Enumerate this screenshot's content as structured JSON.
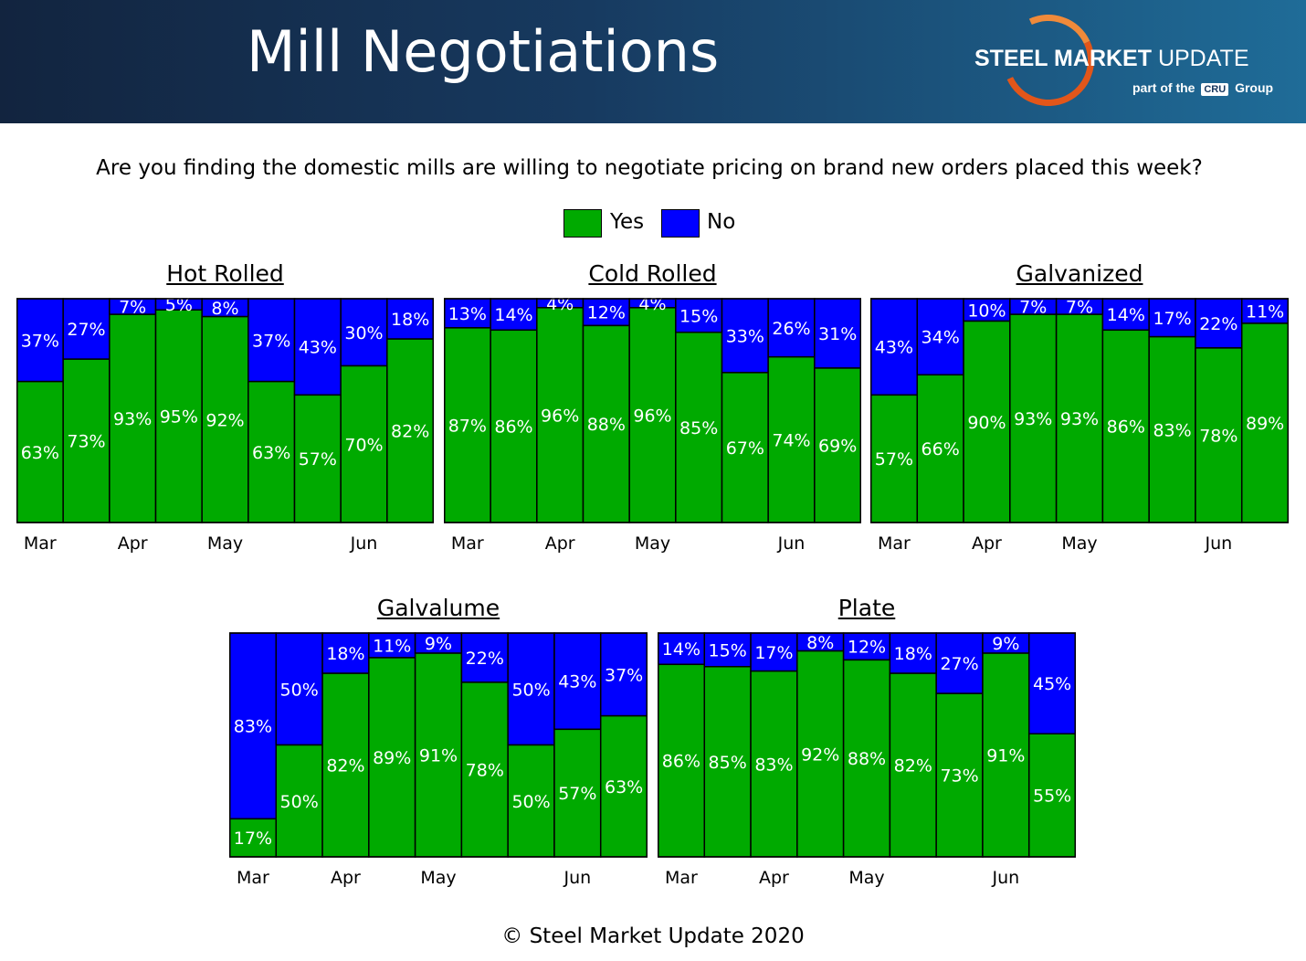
{
  "header": {
    "title": "Mill Negotiations",
    "logo_brand_bold": "STEEL MARKET",
    "logo_brand_light": "UPDATE",
    "logo_sub_prefix": "part of the",
    "logo_sub_cru": "CRU",
    "logo_sub_suffix": "Group"
  },
  "question": "Are you finding the domestic mills are willing to negotiate pricing on brand new orders placed this week?",
  "legend": {
    "yes": "Yes",
    "no": "No"
  },
  "colors": {
    "yes": "#00aa00",
    "no": "#0000ff",
    "label": "#ffffff"
  },
  "footer": "© Steel Market Update 2020",
  "chart_data": [
    {
      "type": "bar",
      "stacked": true,
      "title": "Hot Rolled",
      "series": [
        {
          "name": "Yes",
          "values": [
            63,
            73,
            93,
            95,
            92,
            63,
            57,
            70,
            82
          ]
        },
        {
          "name": "No",
          "values": [
            37,
            27,
            7,
            5,
            8,
            37,
            43,
            30,
            18
          ]
        }
      ],
      "x_ticks": [
        {
          "index": 0,
          "label": "Mar"
        },
        {
          "index": 2,
          "label": "Apr"
        },
        {
          "index": 4,
          "label": "May"
        },
        {
          "index": 7,
          "label": "Jun"
        }
      ],
      "ylim": [
        0,
        100
      ]
    },
    {
      "type": "bar",
      "stacked": true,
      "title": "Cold Rolled",
      "series": [
        {
          "name": "Yes",
          "values": [
            87,
            86,
            96,
            88,
            96,
            85,
            67,
            74,
            69
          ]
        },
        {
          "name": "No",
          "values": [
            13,
            14,
            4,
            12,
            4,
            15,
            33,
            26,
            31
          ]
        }
      ],
      "x_ticks": [
        {
          "index": 0,
          "label": "Mar"
        },
        {
          "index": 2,
          "label": "Apr"
        },
        {
          "index": 4,
          "label": "May"
        },
        {
          "index": 7,
          "label": "Jun"
        }
      ],
      "ylim": [
        0,
        100
      ]
    },
    {
      "type": "bar",
      "stacked": true,
      "title": "Galvanized",
      "series": [
        {
          "name": "Yes",
          "values": [
            57,
            66,
            90,
            93,
            93,
            86,
            83,
            78,
            89
          ]
        },
        {
          "name": "No",
          "values": [
            43,
            34,
            10,
            7,
            7,
            14,
            17,
            22,
            11
          ]
        }
      ],
      "x_ticks": [
        {
          "index": 0,
          "label": "Mar"
        },
        {
          "index": 2,
          "label": "Apr"
        },
        {
          "index": 4,
          "label": "May"
        },
        {
          "index": 7,
          "label": "Jun"
        }
      ],
      "ylim": [
        0,
        100
      ]
    },
    {
      "type": "bar",
      "stacked": true,
      "title": "Galvalume",
      "series": [
        {
          "name": "Yes",
          "values": [
            17,
            50,
            82,
            89,
            91,
            78,
            50,
            57,
            63
          ]
        },
        {
          "name": "No",
          "values": [
            83,
            50,
            18,
            11,
            9,
            22,
            50,
            43,
            37
          ]
        }
      ],
      "x_ticks": [
        {
          "index": 0,
          "label": "Mar"
        },
        {
          "index": 2,
          "label": "Apr"
        },
        {
          "index": 4,
          "label": "May"
        },
        {
          "index": 7,
          "label": "Jun"
        }
      ],
      "ylim": [
        0,
        100
      ]
    },
    {
      "type": "bar",
      "stacked": true,
      "title": "Plate",
      "series": [
        {
          "name": "Yes",
          "values": [
            86,
            85,
            83,
            92,
            88,
            82,
            73,
            91,
            55
          ]
        },
        {
          "name": "No",
          "values": [
            14,
            15,
            17,
            8,
            12,
            18,
            27,
            9,
            45
          ]
        }
      ],
      "x_ticks": [
        {
          "index": 0,
          "label": "Mar"
        },
        {
          "index": 2,
          "label": "Apr"
        },
        {
          "index": 4,
          "label": "May"
        },
        {
          "index": 7,
          "label": "Jun"
        }
      ],
      "ylim": [
        0,
        100
      ]
    }
  ]
}
